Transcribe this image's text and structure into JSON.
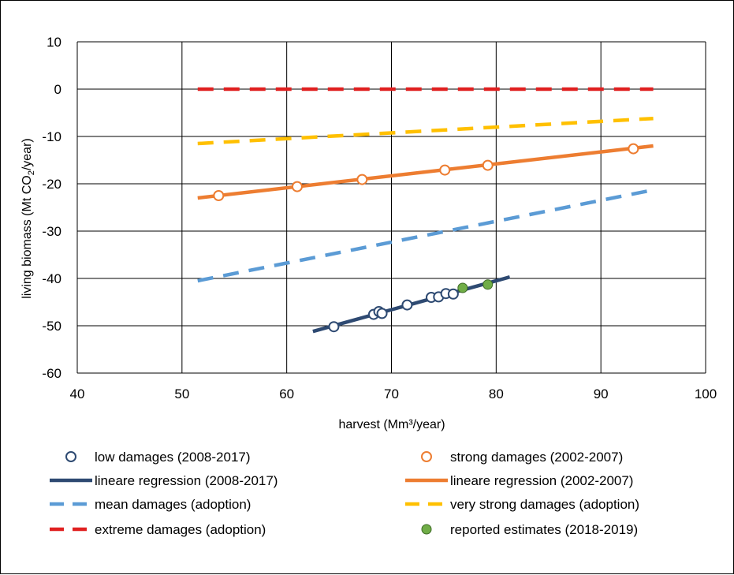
{
  "chart_data": {
    "type": "scatter",
    "xlabel": "harvest (Mm³/year)",
    "ylabel_main": "living biomass (Mt CO",
    "ylabel_sub": "2",
    "ylabel_tail": "/year)",
    "xlim": [
      40,
      100
    ],
    "ylim": [
      -60,
      10
    ],
    "x_ticks": [
      "40",
      "50",
      "60",
      "70",
      "80",
      "90",
      "100"
    ],
    "y_ticks": [
      "10",
      "0",
      "-10",
      "-20",
      "-30",
      "-40",
      "-50",
      "-60"
    ],
    "grid": true,
    "legend_position": "bottom",
    "series": [
      {
        "name": "low damages (2008-2017)",
        "kind": "markers-open",
        "color": "#2e4a72",
        "points": [
          [
            64.5,
            -50.2
          ],
          [
            68.3,
            -47.6
          ],
          [
            68.8,
            -47.0
          ],
          [
            69.1,
            -47.4
          ],
          [
            71.5,
            -45.6
          ],
          [
            73.8,
            -44.0
          ],
          [
            74.5,
            -43.9
          ],
          [
            75.2,
            -43.2
          ],
          [
            75.9,
            -43.3
          ]
        ]
      },
      {
        "name": "strong damages (2002-2007)",
        "kind": "markers-open",
        "color": "#ed7d31",
        "points": [
          [
            53.5,
            -22.5
          ],
          [
            61.0,
            -20.6
          ],
          [
            67.2,
            -19.1
          ],
          [
            75.1,
            -17.1
          ],
          [
            79.2,
            -16.1
          ],
          [
            93.1,
            -12.6
          ]
        ]
      },
      {
        "name": "lineare regression (2008-2017)",
        "kind": "line-solid",
        "color": "#2e4a72",
        "points": [
          [
            62.5,
            -51.2
          ],
          [
            81.3,
            -39.7
          ]
        ]
      },
      {
        "name": "lineare regression (2002-2007)",
        "kind": "line-solid",
        "color": "#ed7d31",
        "points": [
          [
            51.5,
            -23.0
          ],
          [
            95.0,
            -12.0
          ]
        ]
      },
      {
        "name": "mean damages (adoption)",
        "kind": "line-dashed",
        "color": "#5b9bd5",
        "points": [
          [
            51.5,
            -40.5
          ],
          [
            95.0,
            -21.3
          ]
        ]
      },
      {
        "name": "very strong damages (adoption)",
        "kind": "line-dashed",
        "color": "#ffc000",
        "points": [
          [
            51.5,
            -11.5
          ],
          [
            95.0,
            -6.2
          ]
        ]
      },
      {
        "name": "extreme damages (adoption)",
        "kind": "line-dashed",
        "color": "#e02020",
        "points": [
          [
            51.5,
            0
          ],
          [
            95.0,
            0
          ]
        ]
      },
      {
        "name": "reported estimates (2018-2019)",
        "kind": "markers-filled",
        "color": "#70ad47",
        "points": [
          [
            76.8,
            -42.0
          ],
          [
            79.2,
            -41.3
          ]
        ]
      }
    ]
  }
}
